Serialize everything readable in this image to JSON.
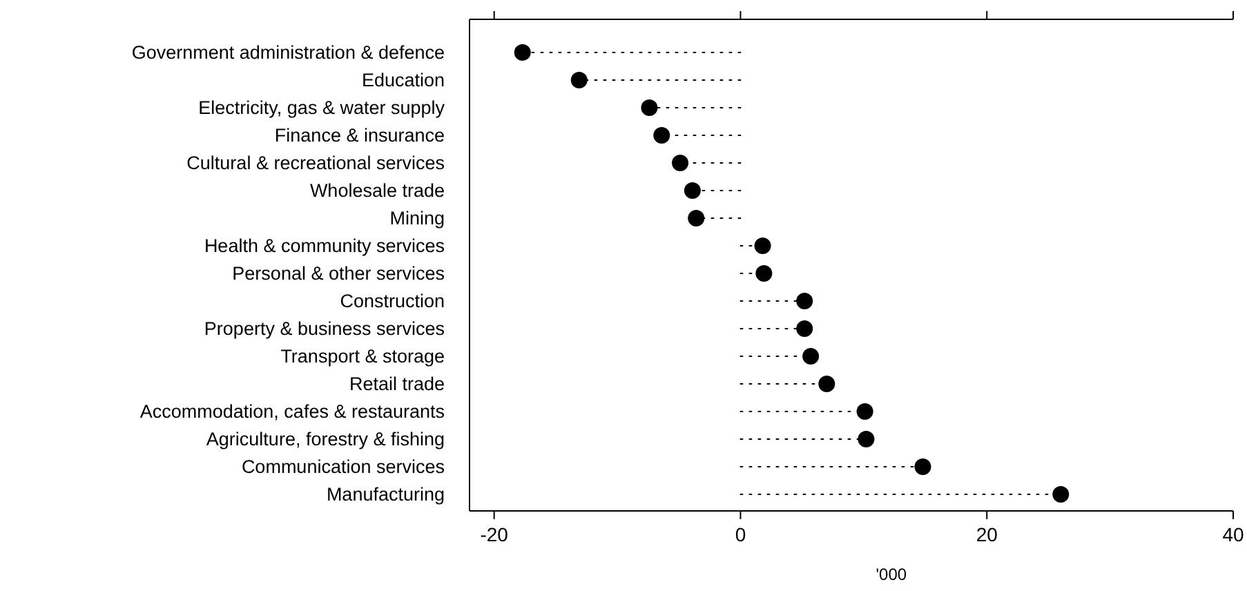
{
  "chart_data": {
    "type": "lollipop",
    "orientation": "horizontal",
    "xlabel": "'000",
    "categories": [
      "Government administration & defence",
      "Education",
      "Electricity, gas & water supply",
      "Finance & insurance",
      "Cultural & recreational services",
      "Wholesale trade",
      "Mining",
      "Health & community services",
      "Personal & other services",
      "Construction",
      "Property & business services",
      "Transport & storage",
      "Retail trade",
      "Accommodation, cafes & restaurants",
      "Agriculture, forestry & fishing",
      "Communication services",
      "Manufacturing"
    ],
    "values": [
      -17.7,
      -13.1,
      -7.4,
      -6.4,
      -4.9,
      -3.9,
      -3.6,
      1.8,
      1.9,
      5.2,
      5.2,
      5.7,
      7.0,
      10.1,
      10.2,
      14.8,
      26.0
    ],
    "color": "#000000",
    "xlim": [
      -22,
      40
    ],
    "xticks": [
      -20,
      0,
      20,
      40
    ],
    "marker": "circle",
    "line_style": "dotted"
  }
}
